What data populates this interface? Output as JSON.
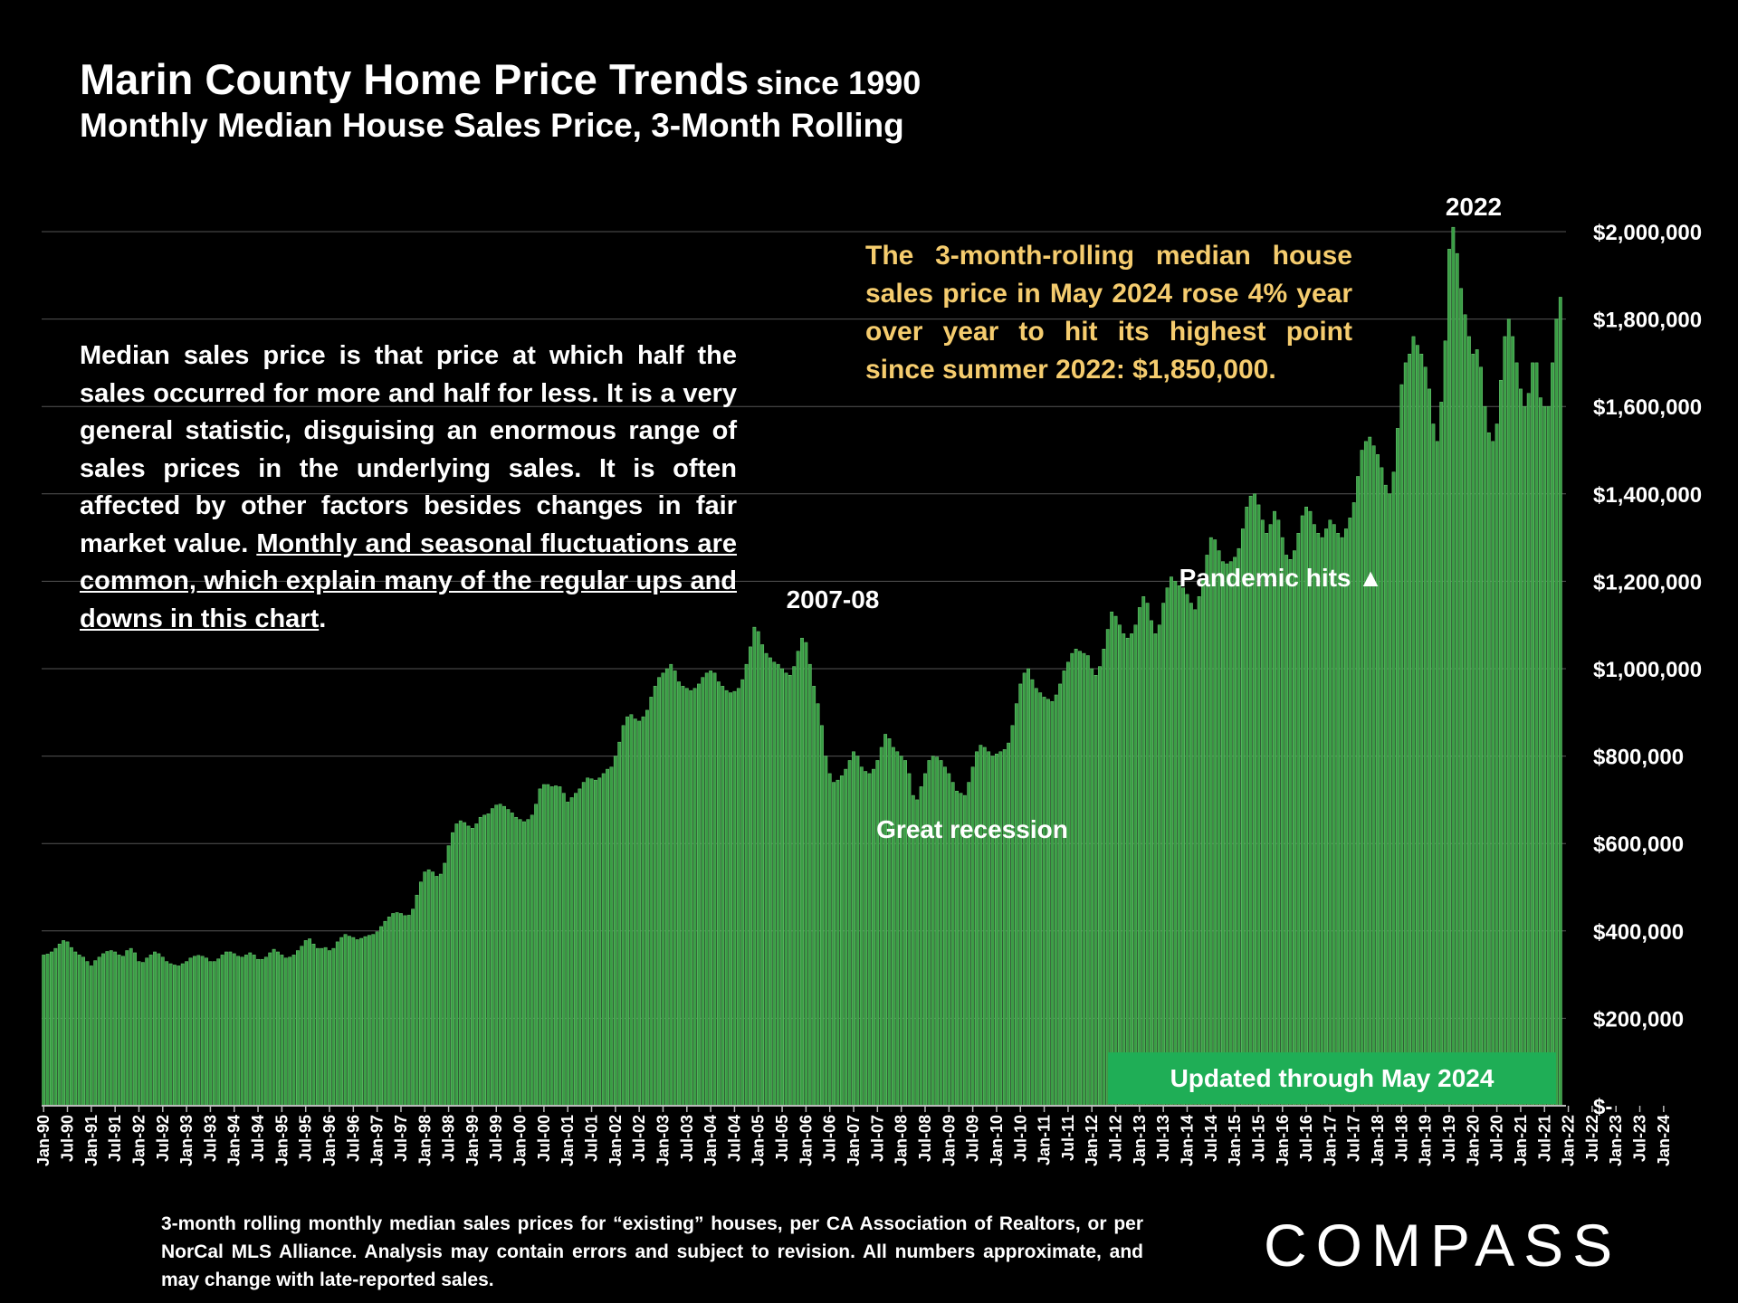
{
  "header": {
    "title": "Marin County Home Price Trends",
    "title_suffix": "since 1990",
    "subtitle": "Monthly Median House Sales Price, 3-Month Rolling"
  },
  "notes": {
    "left_plain": "Median sales price is that price at which half the sales occurred for more and half for less. It is a very general statistic, disguising an enormous range of sales prices in the underlying sales. It is often affected by other factors besides changes in fair market value. ",
    "left_underlined": "Monthly and seasonal fluctuations are common, which explain many of the regular ups and downs in this chart",
    "left_end": ".",
    "right": "The 3-month-rolling median house sales price in May 2024 rose 4% year over year to hit its highest point since summer 2022:  $1,850,000."
  },
  "banner": "Updated through May 2024",
  "footnote": "3-month rolling monthly median sales prices for “existing” houses, per CA Association of Realtors, or per NorCal MLS Alliance. Analysis may contain errors and subject to revision. All numbers approximate, and may change with late-reported sales.",
  "logo": "COMPASS",
  "colors": {
    "bar": "#3a9e45",
    "bar_edge": "#6fce77",
    "highlight": "#f5cc6e",
    "banner": "#1fae56"
  },
  "chart_data": {
    "type": "bar",
    "title": "Marin County Home Price Trends since 1990",
    "subtitle": "Monthly Median House Sales Price, 3-Month Rolling",
    "ylim": [
      0,
      2000000
    ],
    "y_ticks": [
      0,
      200000,
      400000,
      600000,
      800000,
      1000000,
      1200000,
      1400000,
      1600000,
      1800000,
      2000000
    ],
    "y_tick_labels": [
      "$-",
      "$200,000",
      "$400,000",
      "$600,000",
      "$800,000",
      "$1,000,000",
      "$1,200,000",
      "$1,400,000",
      "$1,600,000",
      "$1,800,000",
      "$2,000,000"
    ],
    "start": "Jan-90",
    "end": "May-24",
    "x_tick_labels": [
      "Jan-90",
      "Jul-90",
      "Jan-91",
      "Jul-91",
      "Jan-92",
      "Jul-92",
      "Jan-93",
      "Jul-93",
      "Jan-94",
      "Jul-94",
      "Jan-95",
      "Jul-95",
      "Jan-96",
      "Jul-96",
      "Jan-97",
      "Jul-97",
      "Jan-98",
      "Jul-98",
      "Jan-99",
      "Jul-99",
      "Jan-00",
      "Jul-00",
      "Jan-01",
      "Jul-01",
      "Jan-02",
      "Jul-02",
      "Jan-03",
      "Jul-03",
      "Jan-04",
      "Jul-04",
      "Jan-05",
      "Jul-05",
      "Jan-06",
      "Jul-06",
      "Jan-07",
      "Jul-07",
      "Jan-08",
      "Jul-08",
      "Jan-09",
      "Jul-09",
      "Jan-10",
      "Jul-10",
      "Jan-11",
      "Jul-11",
      "Jan-12",
      "Jul-12",
      "Jan-13",
      "Jul-13",
      "Jan-14",
      "Jul-14",
      "Jan-15",
      "Jul-15",
      "Jan-16",
      "Jul-16",
      "Jan-17",
      "Jul-17",
      "Jan-18",
      "Jul-18",
      "Jan-19",
      "Jul-19",
      "Jan-20",
      "Jul-20",
      "Jan-21",
      "Jul-21",
      "Jan-22",
      "Jul-22",
      "Jan-23",
      "Jul-23",
      "Jan-24"
    ],
    "values": [
      345000,
      347000,
      352000,
      360000,
      370000,
      378000,
      375000,
      362000,
      352000,
      345000,
      340000,
      330000,
      320000,
      332000,
      340000,
      348000,
      353000,
      355000,
      352000,
      345000,
      342000,
      355000,
      360000,
      350000,
      330000,
      328000,
      338000,
      345000,
      352000,
      348000,
      340000,
      330000,
      325000,
      322000,
      320000,
      325000,
      330000,
      338000,
      342000,
      344000,
      342000,
      338000,
      330000,
      330000,
      336000,
      345000,
      352000,
      352000,
      348000,
      342000,
      340000,
      345000,
      350000,
      345000,
      335000,
      335000,
      340000,
      350000,
      358000,
      352000,
      345000,
      338000,
      340000,
      345000,
      355000,
      365000,
      378000,
      382000,
      370000,
      360000,
      360000,
      362000,
      355000,
      360000,
      375000,
      385000,
      392000,
      388000,
      385000,
      380000,
      383000,
      387000,
      390000,
      392000,
      398000,
      410000,
      422000,
      432000,
      440000,
      442000,
      440000,
      435000,
      436000,
      450000,
      482000,
      512000,
      535000,
      540000,
      535000,
      525000,
      530000,
      555000,
      595000,
      625000,
      645000,
      652000,
      648000,
      640000,
      635000,
      645000,
      660000,
      665000,
      668000,
      680000,
      688000,
      690000,
      685000,
      678000,
      670000,
      660000,
      655000,
      650000,
      655000,
      665000,
      690000,
      725000,
      735000,
      735000,
      730000,
      732000,
      730000,
      715000,
      695000,
      705000,
      715000,
      725000,
      740000,
      750000,
      748000,
      745000,
      750000,
      760000,
      770000,
      775000,
      800000,
      832000,
      870000,
      890000,
      895000,
      885000,
      880000,
      890000,
      905000,
      935000,
      960000,
      980000,
      990000,
      1000000,
      1010000,
      995000,
      970000,
      960000,
      955000,
      950000,
      955000,
      965000,
      980000,
      990000,
      995000,
      990000,
      970000,
      960000,
      950000,
      945000,
      948000,
      955000,
      975000,
      1010000,
      1050000,
      1095000,
      1085000,
      1055000,
      1035000,
      1025000,
      1015000,
      1010000,
      1000000,
      990000,
      985000,
      1005000,
      1040000,
      1070000,
      1060000,
      1010000,
      960000,
      920000,
      870000,
      800000,
      760000,
      740000,
      745000,
      755000,
      770000,
      790000,
      810000,
      800000,
      775000,
      765000,
      760000,
      770000,
      790000,
      820000,
      850000,
      840000,
      820000,
      810000,
      800000,
      790000,
      760000,
      710000,
      700000,
      730000,
      760000,
      790000,
      800000,
      798000,
      790000,
      775000,
      760000,
      740000,
      720000,
      715000,
      710000,
      740000,
      775000,
      810000,
      825000,
      820000,
      810000,
      800000,
      805000,
      810000,
      815000,
      830000,
      870000,
      920000,
      965000,
      990000,
      1000000,
      975000,
      955000,
      945000,
      935000,
      930000,
      925000,
      940000,
      965000,
      995000,
      1015000,
      1035000,
      1045000,
      1040000,
      1035000,
      1030000,
      1000000,
      985000,
      1005000,
      1045000,
      1090000,
      1130000,
      1120000,
      1100000,
      1080000,
      1070000,
      1080000,
      1100000,
      1140000,
      1165000,
      1150000,
      1110000,
      1080000,
      1100000,
      1150000,
      1185000,
      1210000,
      1200000,
      1190000,
      1185000,
      1170000,
      1150000,
      1135000,
      1165000,
      1205000,
      1260000,
      1300000,
      1295000,
      1270000,
      1245000,
      1240000,
      1245000,
      1255000,
      1275000,
      1320000,
      1370000,
      1395000,
      1400000,
      1375000,
      1340000,
      1310000,
      1330000,
      1360000,
      1340000,
      1300000,
      1260000,
      1250000,
      1270000,
      1310000,
      1350000,
      1370000,
      1360000,
      1330000,
      1310000,
      1300000,
      1320000,
      1340000,
      1330000,
      1310000,
      1300000,
      1320000,
      1345000,
      1380000,
      1440000,
      1500000,
      1520000,
      1530000,
      1510000,
      1490000,
      1460000,
      1420000,
      1400000,
      1450000,
      1550000,
      1650000,
      1700000,
      1720000,
      1760000,
      1740000,
      1720000,
      1690000,
      1640000,
      1560000,
      1520000,
      1610000,
      1750000,
      1960000,
      2010000,
      1950000,
      1870000,
      1810000,
      1760000,
      1720000,
      1730000,
      1690000,
      1600000,
      1540000,
      1520000,
      1560000,
      1660000,
      1760000,
      1800000,
      1760000,
      1700000,
      1640000,
      1600000,
      1630000,
      1700000,
      1700000,
      1620000,
      1600000,
      1600000,
      1700000,
      1800000,
      1850000
    ],
    "annotations": [
      {
        "label": "2022",
        "x": "Mar-22",
        "y": 2010000
      },
      {
        "label": "2007-08",
        "x": "Jul-07",
        "y": 1100000
      },
      {
        "label": "Great recession",
        "x": "Jun-10",
        "y": 640000
      },
      {
        "label": "Pandemic hits",
        "x": "Mar-20",
        "marker": "▲"
      }
    ]
  }
}
